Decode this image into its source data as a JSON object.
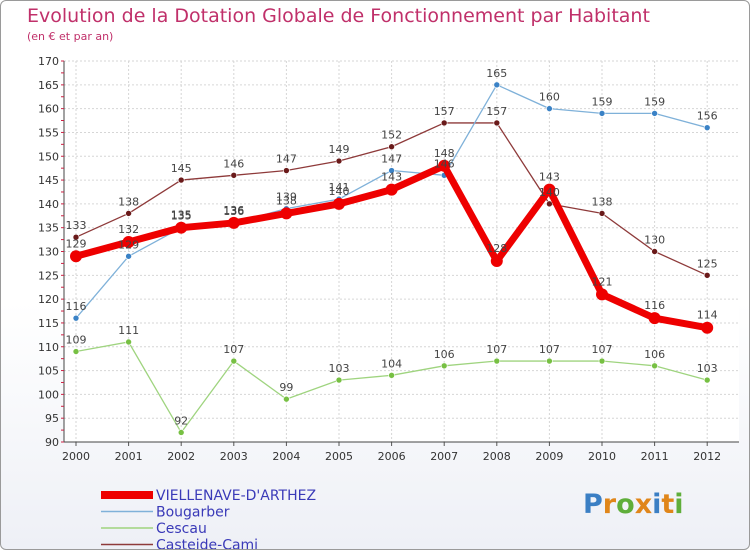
{
  "header": {
    "title": "Evolution de la Dotation Globale de Fonctionnement par Habitant",
    "subtitle": "(en € et par an)"
  },
  "logo": {
    "text": "Proxiti",
    "letters": [
      "P",
      "r",
      "o",
      "x",
      "i",
      "t",
      "i"
    ],
    "colors": [
      "#3b7fc4",
      "#e0861a",
      "#5fae3a",
      "#e0861a",
      "#3b7fc4",
      "#e0861a",
      "#5fae3a"
    ]
  },
  "chart_data": {
    "type": "line",
    "title": "Evolution de la Dotation Globale de Fonctionnement par Habitant",
    "subtitle": "(en € et par an)",
    "xlabel": "",
    "ylabel": "",
    "ylim": [
      90,
      170
    ],
    "yticks": [
      90,
      95,
      100,
      105,
      110,
      115,
      120,
      125,
      130,
      135,
      140,
      145,
      150,
      155,
      160,
      165,
      170
    ],
    "grid": true,
    "legend_position": "bottom-left",
    "categories": [
      "2000",
      "2001",
      "2002",
      "2003",
      "2004",
      "2005",
      "2006",
      "2007",
      "2008",
      "2009",
      "2010",
      "2011",
      "2012"
    ],
    "series": [
      {
        "name": "VIELLENAVE-D'ARTHEZ",
        "color": "#ee0000",
        "marker_color": "#ee0000",
        "label_color": "#444444",
        "values": [
          129,
          132,
          135,
          136,
          138,
          140,
          143,
          148,
          128,
          143,
          121,
          116,
          114
        ]
      },
      {
        "name": "Bougarber",
        "color": "#7fb1d9",
        "marker_color": "#3a82c6",
        "label_color": "#444444",
        "values": [
          116,
          129,
          135,
          136,
          139,
          141,
          147,
          146,
          165,
          160,
          159,
          159,
          156
        ]
      },
      {
        "name": "Cescau",
        "color": "#9fd47f",
        "marker_color": "#77c043",
        "label_color": "#444444",
        "values": [
          109,
          111,
          92,
          107,
          99,
          103,
          104,
          106,
          107,
          107,
          107,
          106,
          103
        ]
      },
      {
        "name": "Casteide-Cami",
        "color": "#8e3a3a",
        "marker_color": "#6a1a1a",
        "label_color": "#444444",
        "values": [
          133,
          138,
          145,
          146,
          147,
          149,
          152,
          157,
          157,
          140,
          138,
          130,
          125
        ]
      }
    ]
  }
}
